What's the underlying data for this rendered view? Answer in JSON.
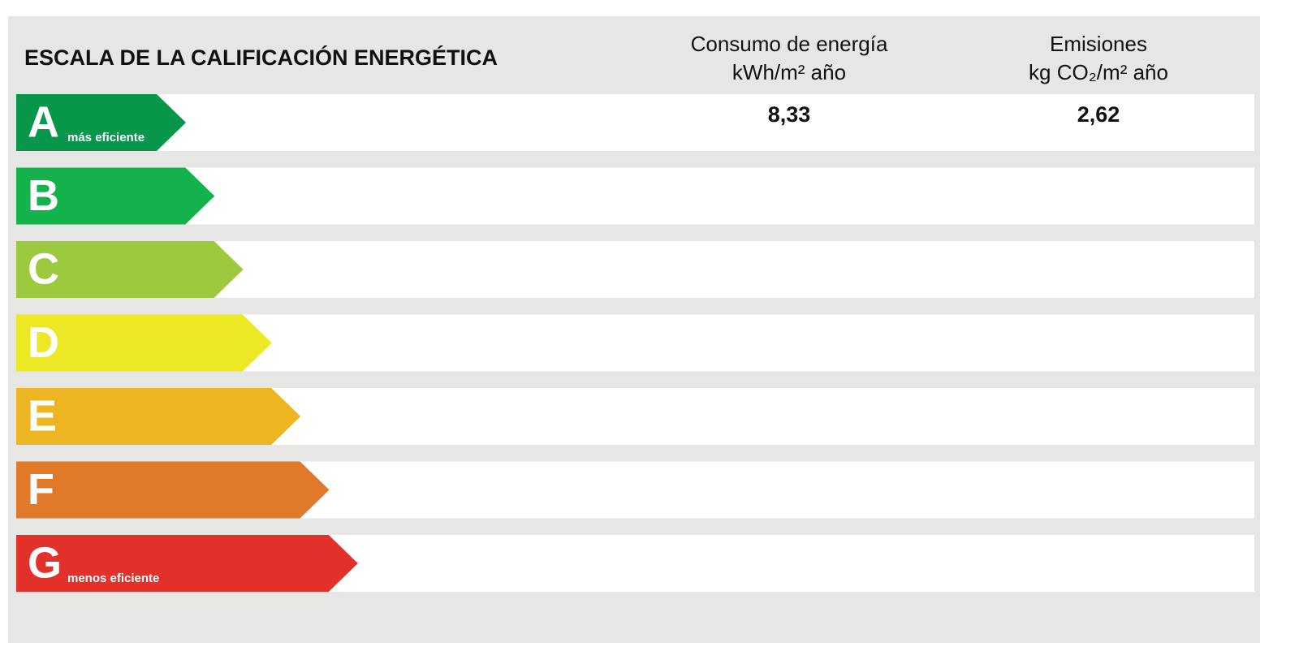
{
  "header": {
    "title": "ESCALA DE LA CALIFICACIÓN ENERGÉTICA",
    "columns": [
      {
        "line1": "Consumo de energía",
        "line2": "kWh/m² año"
      },
      {
        "line1": "Emisiones",
        "line2": "kg CO₂/m² año"
      }
    ]
  },
  "rows": [
    {
      "letter": "A",
      "note": "más eficiente",
      "color": "#07964a",
      "values": [
        "8,33",
        "2,62"
      ]
    },
    {
      "letter": "B",
      "color": "#13b24c"
    },
    {
      "letter": "C",
      "color": "#9cc93d"
    },
    {
      "letter": "D",
      "color": "#ece826"
    },
    {
      "letter": "E",
      "color": "#eeb522"
    },
    {
      "letter": "F",
      "color": "#e07929"
    },
    {
      "letter": "G",
      "note": "menos eficiente",
      "color": "#e2312b"
    }
  ]
}
